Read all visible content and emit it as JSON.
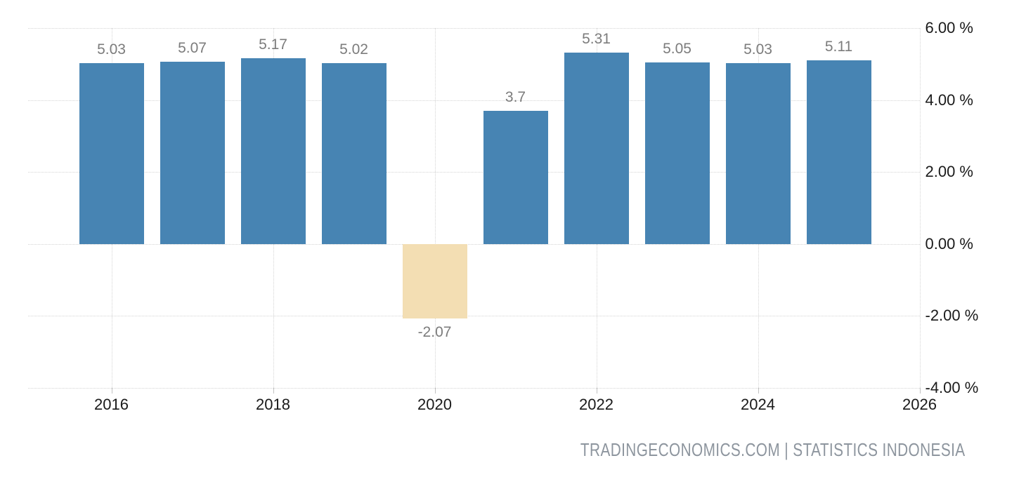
{
  "chart_data": {
    "type": "bar",
    "title": "",
    "categories": [
      "2016",
      "2017",
      "2018",
      "2019",
      "2020",
      "2021",
      "2022",
      "2023",
      "2024",
      "2025"
    ],
    "values": [
      5.03,
      5.07,
      5.17,
      5.02,
      -2.07,
      3.7,
      5.31,
      5.05,
      5.03,
      5.11
    ],
    "point_labels": [
      "5.03",
      "5.07",
      "5.17",
      "5.02",
      "-2.07",
      "3.7",
      "5.31",
      "5.05",
      "5.03",
      "5.11"
    ],
    "x_axis": {
      "tick_values": [
        2016,
        2018,
        2020,
        2022,
        2024,
        2026
      ],
      "tick_labels": [
        "2016",
        "2018",
        "2020",
        "2022",
        "2024",
        "2026"
      ]
    },
    "y_axis": {
      "side": "right",
      "tick_values": [
        6,
        4,
        2,
        0,
        -2,
        -4
      ],
      "tick_labels": [
        "6.00 %",
        "4.00 %",
        "2.00 %",
        "0.00 %",
        "-2.00 %",
        "-4.00 %"
      ],
      "min": -4,
      "max": 6
    },
    "grid": "dotted",
    "legend": "none",
    "colors": {
      "bar_positive": "#4784b3",
      "bar_negative": "#f3deb3",
      "value_label": "#7c7c7c",
      "axis_text": "#1a1a1a",
      "gridline": "#d4d4d4",
      "tick": "#c2c2c2",
      "attribution_text": "#8d959e",
      "background": "#ffffff"
    },
    "attribution": "TRADINGECONOMICS.COM | STATISTICS INDONESIA"
  }
}
